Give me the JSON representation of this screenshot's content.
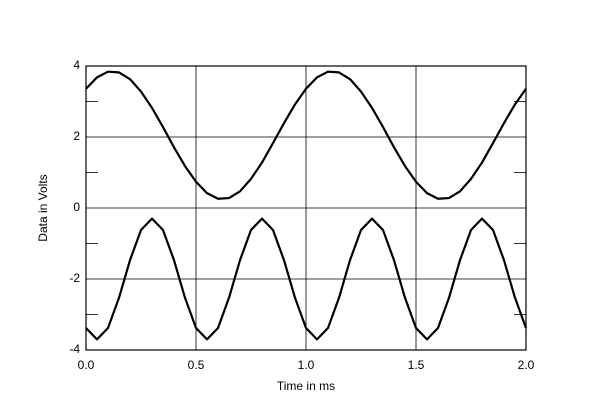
{
  "chart_data": {
    "type": "line",
    "x_label": "Time in ms",
    "y_label": "Data in Volts",
    "x": [
      0,
      0.05,
      0.1,
      0.15,
      0.2,
      0.25,
      0.3,
      0.35,
      0.4,
      0.45,
      0.5,
      0.55,
      0.6,
      0.65,
      0.7,
      0.75,
      0.8,
      0.85,
      0.9,
      0.95,
      1,
      1.05,
      1.1,
      1.15,
      1.2,
      1.25,
      1.3,
      1.35,
      1.4,
      1.45,
      1.5,
      1.55,
      1.6,
      1.65,
      1.7,
      1.75,
      1.8,
      1.85,
      1.9,
      1.95,
      2
    ],
    "series": [
      {
        "color": "#000000",
        "values": [
          3.36,
          3.68,
          3.84,
          3.82,
          3.63,
          3.28,
          2.82,
          2.28,
          1.71,
          1.18,
          0.74,
          0.42,
          0.26,
          0.28,
          0.47,
          0.82,
          1.28,
          1.83,
          2.39,
          2.92,
          3.36,
          3.68,
          3.84,
          3.82,
          3.63,
          3.28,
          2.82,
          2.28,
          1.71,
          1.18,
          0.74,
          0.42,
          0.26,
          0.28,
          0.47,
          0.82,
          1.28,
          1.83,
          2.39,
          2.92,
          3.36
        ]
      },
      {
        "color": "#000000",
        "values": [
          -3.38,
          -3.7,
          -3.38,
          -2.53,
          -1.47,
          -0.62,
          -0.3,
          -0.62,
          -1.47,
          -2.53,
          -3.38,
          -3.7,
          -3.38,
          -2.53,
          -1.47,
          -0.62,
          -0.3,
          -0.62,
          -1.47,
          -2.53,
          -3.38,
          -3.7,
          -3.38,
          -2.53,
          -1.47,
          -0.62,
          -0.3,
          -0.62,
          -1.47,
          -2.53,
          -3.38,
          -3.7,
          -3.38,
          -2.53,
          -1.47,
          -0.62,
          -0.3,
          -0.62,
          -1.47,
          -2.53,
          -3.38
        ]
      }
    ],
    "xlim": [
      0,
      2
    ],
    "ylim": [
      -4,
      4
    ],
    "xticks": [
      {
        "value": 0,
        "label": "0.0"
      },
      {
        "value": 0.5,
        "label": "0.5"
      },
      {
        "value": 1,
        "label": "1.0"
      },
      {
        "value": 1.5,
        "label": "1.5"
      },
      {
        "value": 2,
        "label": "2.0"
      }
    ],
    "yticks": [
      -4,
      -2,
      0,
      2,
      4
    ],
    "y_minor_ticks": [
      -3,
      -1,
      1,
      3
    ],
    "grid": true
  }
}
